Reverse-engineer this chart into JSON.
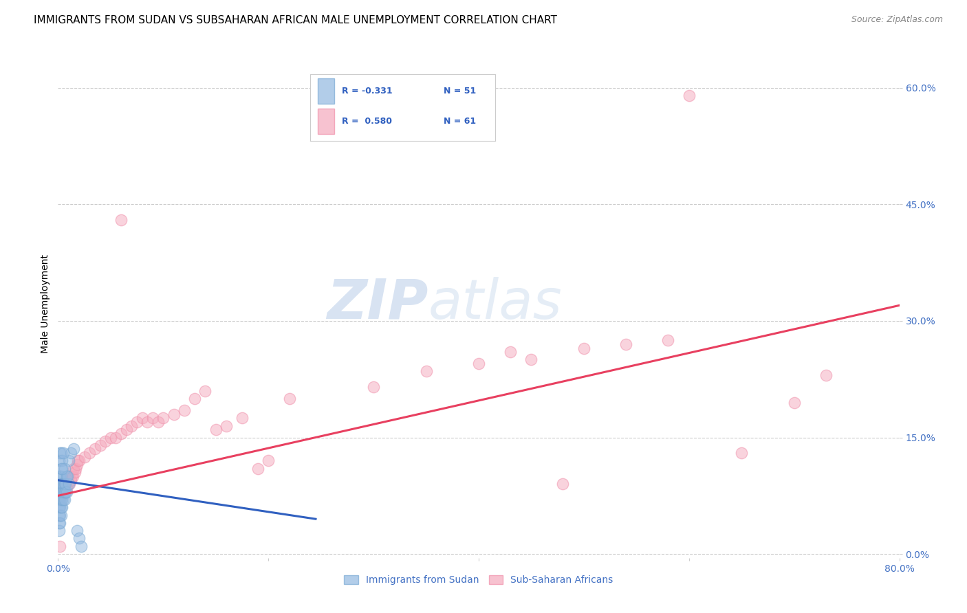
{
  "title": "IMMIGRANTS FROM SUDAN VS SUBSAHARAN AFRICAN MALE UNEMPLOYMENT CORRELATION CHART",
  "source": "Source: ZipAtlas.com",
  "ylabel": "Male Unemployment",
  "xlim": [
    0,
    0.8
  ],
  "ylim": [
    -0.005,
    0.65
  ],
  "yticks": [
    0.0,
    0.15,
    0.3,
    0.45,
    0.6
  ],
  "ytick_labels": [
    "0.0%",
    "15.0%",
    "30.0%",
    "45.0%",
    "60.0%"
  ],
  "xticks": [
    0.0,
    0.2,
    0.4,
    0.6,
    0.8
  ],
  "xtick_labels": [
    "0.0%",
    "",
    "",
    "",
    "80.0%"
  ],
  "legend_r1": "R = -0.331",
  "legend_n1": "N = 51",
  "legend_r2": "R = 0.580",
  "legend_n2": "N = 61",
  "legend_label1": "Immigrants from Sudan",
  "legend_label2": "Sub-Saharan Africans",
  "blue_color": "#92b8e0",
  "pink_color": "#f4a8bc",
  "blue_edge_color": "#7aaad4",
  "pink_edge_color": "#f090aa",
  "blue_line_color": "#3060c0",
  "pink_line_color": "#e84060",
  "blue_scatter": [
    [
      0.001,
      0.04
    ],
    [
      0.001,
      0.05
    ],
    [
      0.001,
      0.06
    ],
    [
      0.001,
      0.07
    ],
    [
      0.001,
      0.08
    ],
    [
      0.001,
      0.09
    ],
    [
      0.001,
      0.1
    ],
    [
      0.001,
      0.03
    ],
    [
      0.002,
      0.05
    ],
    [
      0.002,
      0.06
    ],
    [
      0.002,
      0.07
    ],
    [
      0.002,
      0.08
    ],
    [
      0.002,
      0.09
    ],
    [
      0.002,
      0.1
    ],
    [
      0.002,
      0.04
    ],
    [
      0.003,
      0.05
    ],
    [
      0.003,
      0.06
    ],
    [
      0.003,
      0.07
    ],
    [
      0.003,
      0.08
    ],
    [
      0.003,
      0.09
    ],
    [
      0.003,
      0.1
    ],
    [
      0.003,
      0.11
    ],
    [
      0.004,
      0.06
    ],
    [
      0.004,
      0.07
    ],
    [
      0.004,
      0.08
    ],
    [
      0.004,
      0.09
    ],
    [
      0.005,
      0.07
    ],
    [
      0.005,
      0.08
    ],
    [
      0.005,
      0.09
    ],
    [
      0.006,
      0.07
    ],
    [
      0.006,
      0.08
    ],
    [
      0.006,
      0.09
    ],
    [
      0.007,
      0.08
    ],
    [
      0.007,
      0.09
    ],
    [
      0.008,
      0.08
    ],
    [
      0.01,
      0.09
    ],
    [
      0.01,
      0.12
    ],
    [
      0.012,
      0.13
    ],
    [
      0.015,
      0.135
    ],
    [
      0.018,
      0.03
    ],
    [
      0.02,
      0.02
    ],
    [
      0.022,
      0.01
    ],
    [
      0.001,
      0.12
    ],
    [
      0.003,
      0.13
    ],
    [
      0.002,
      0.13
    ],
    [
      0.004,
      0.12
    ],
    [
      0.005,
      0.13
    ],
    [
      0.006,
      0.11
    ],
    [
      0.008,
      0.1
    ],
    [
      0.009,
      0.1
    ],
    [
      0.004,
      0.11
    ]
  ],
  "pink_scatter": [
    [
      0.001,
      0.07
    ],
    [
      0.002,
      0.08
    ],
    [
      0.003,
      0.075
    ],
    [
      0.004,
      0.08
    ],
    [
      0.005,
      0.09
    ],
    [
      0.006,
      0.09
    ],
    [
      0.007,
      0.08
    ],
    [
      0.008,
      0.085
    ],
    [
      0.009,
      0.09
    ],
    [
      0.01,
      0.1
    ],
    [
      0.011,
      0.09
    ],
    [
      0.012,
      0.095
    ],
    [
      0.013,
      0.1
    ],
    [
      0.014,
      0.1
    ],
    [
      0.015,
      0.11
    ],
    [
      0.016,
      0.105
    ],
    [
      0.017,
      0.11
    ],
    [
      0.018,
      0.115
    ],
    [
      0.019,
      0.12
    ],
    [
      0.02,
      0.12
    ],
    [
      0.025,
      0.125
    ],
    [
      0.03,
      0.13
    ],
    [
      0.035,
      0.135
    ],
    [
      0.04,
      0.14
    ],
    [
      0.045,
      0.145
    ],
    [
      0.05,
      0.15
    ],
    [
      0.055,
      0.15
    ],
    [
      0.06,
      0.155
    ],
    [
      0.065,
      0.16
    ],
    [
      0.07,
      0.165
    ],
    [
      0.075,
      0.17
    ],
    [
      0.08,
      0.175
    ],
    [
      0.085,
      0.17
    ],
    [
      0.09,
      0.175
    ],
    [
      0.095,
      0.17
    ],
    [
      0.1,
      0.175
    ],
    [
      0.11,
      0.18
    ],
    [
      0.12,
      0.185
    ],
    [
      0.13,
      0.2
    ],
    [
      0.14,
      0.21
    ],
    [
      0.06,
      0.43
    ],
    [
      0.15,
      0.16
    ],
    [
      0.16,
      0.165
    ],
    [
      0.175,
      0.175
    ],
    [
      0.19,
      0.11
    ],
    [
      0.2,
      0.12
    ],
    [
      0.22,
      0.2
    ],
    [
      0.3,
      0.215
    ],
    [
      0.35,
      0.235
    ],
    [
      0.4,
      0.245
    ],
    [
      0.43,
      0.26
    ],
    [
      0.45,
      0.25
    ],
    [
      0.48,
      0.09
    ],
    [
      0.5,
      0.265
    ],
    [
      0.54,
      0.27
    ],
    [
      0.58,
      0.275
    ],
    [
      0.6,
      0.59
    ],
    [
      0.65,
      0.13
    ],
    [
      0.7,
      0.195
    ],
    [
      0.73,
      0.23
    ],
    [
      0.002,
      0.01
    ]
  ],
  "blue_line_x": [
    0.0,
    0.245
  ],
  "blue_line_y": [
    0.095,
    0.045
  ],
  "pink_line_x": [
    0.0,
    0.8
  ],
  "pink_line_y": [
    0.075,
    0.32
  ],
  "watermark_zip": "ZIP",
  "watermark_atlas": "atlas",
  "background_color": "#ffffff",
  "tick_color": "#4472c4",
  "grid_color": "#cccccc",
  "title_fontsize": 11,
  "axis_label_fontsize": 10,
  "tick_fontsize": 10,
  "source_fontsize": 9
}
